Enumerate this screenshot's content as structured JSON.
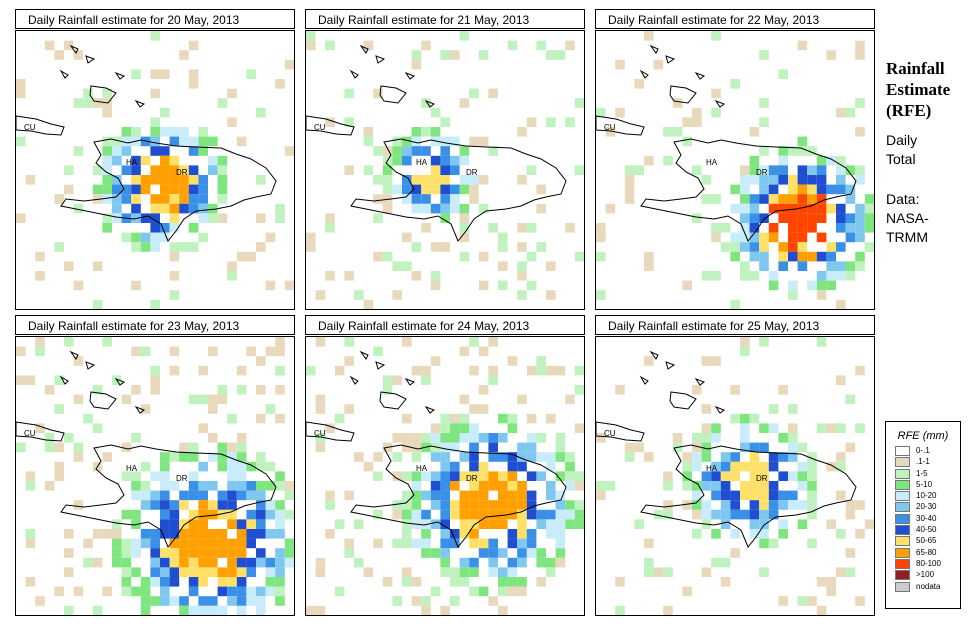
{
  "colors": {
    "0-.1": "#ffffff",
    ".1-1": "#e9d9bc",
    "1-5": "#bff2bf",
    "5-10": "#7fe67f",
    "10-20": "#c9ecfb",
    "20-30": "#7fc7ef",
    "30-40": "#3a8fe6",
    "40-50": "#1f4fd0",
    "50-65": "#ffe16a",
    "65-80": "#ffa000",
    "80-100": "#ff4500",
    ">100": "#9b1c1c",
    "nodata": "#cccccc"
  },
  "heading": {
    "line1": "Rainfall",
    "line2": "Estimate",
    "line3": "(RFE)"
  },
  "subtitle": {
    "line1": "Daily",
    "line2": "Total"
  },
  "data_note": {
    "line1": "Data:",
    "line2": "NASA-",
    "line3": "TRMM"
  },
  "legend": {
    "title": "RFE (mm)",
    "items": [
      {
        "label": "0-.1",
        "color": "#ffffff"
      },
      {
        "label": ".1-1",
        "color": "#e9d9bc"
      },
      {
        "label": "1-5",
        "color": "#bff2bf"
      },
      {
        "label": "5-10",
        "color": "#7fe67f"
      },
      {
        "label": "10-20",
        "color": "#c9ecfb"
      },
      {
        "label": "20-30",
        "color": "#7fc7ef"
      },
      {
        "label": "30-40",
        "color": "#3a8fe6"
      },
      {
        "label": "40-50",
        "color": "#1f4fd0"
      },
      {
        "label": "50-65",
        "color": "#ffe16a"
      },
      {
        "label": "65-80",
        "color": "#ffa000"
      },
      {
        "label": "80-100",
        "color": "#ff4500"
      },
      {
        "label": ">100",
        "color": "#9b1c1c"
      },
      {
        "label": "nodata",
        "color": "#cccccc"
      }
    ]
  },
  "map_labels": {
    "cuba": "CU",
    "haiti": "HA",
    "dominican_republic": "DR"
  },
  "panels": [
    {
      "title": "Daily Rainfall estimate for  20 May, 2013",
      "date": "20 May, 2013",
      "intensity": "moderate over Hispaniola"
    },
    {
      "title": "Daily Rainfall estimate for  21 May, 2013",
      "date": "21 May, 2013",
      "intensity": "light"
    },
    {
      "title": "Daily Rainfall estimate for  22 May, 2013",
      "date": "22 May, 2013",
      "intensity": "heavy south of Hispaniola"
    },
    {
      "title": "Daily Rainfall estimate for  23 May, 2013",
      "date": "23 May, 2013",
      "intensity": "moderate to heavy"
    },
    {
      "title": "Daily Rainfall estimate for  24 May, 2013",
      "date": "24 May, 2013",
      "intensity": "moderate"
    },
    {
      "title": "Daily Rainfall estimate for  25 May, 2013",
      "date": "25 May, 2013",
      "intensity": "light to moderate"
    }
  ]
}
